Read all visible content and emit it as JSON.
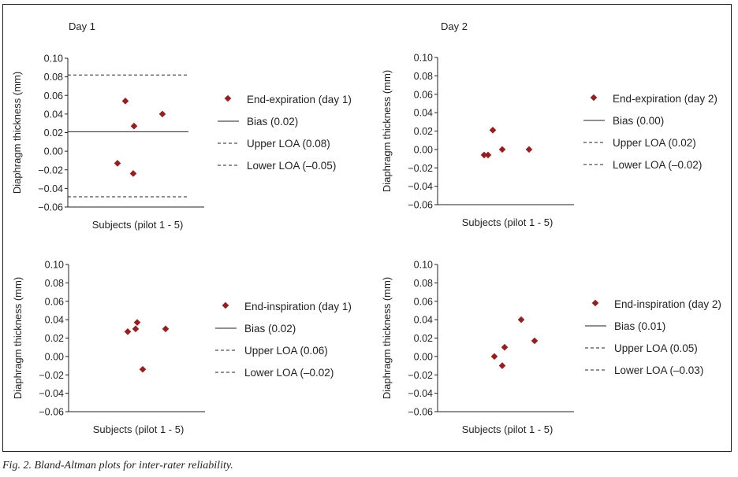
{
  "caption": "Fig. 2. Bland-Altman plots for inter-rater reliability.",
  "colors": {
    "marker": "#9b1c1c",
    "line": "#231f20"
  },
  "chart_data": [
    {
      "type": "scatter",
      "panel": "top-left",
      "title": "Day 1",
      "xlabel": "Subjects (pilot 1 - 5)",
      "ylabel": "Diaphragm thickness (mm)",
      "ylim": [
        -0.06,
        0.1
      ],
      "yticks": [
        "0.10",
        "0.08",
        "0.06",
        "0.04",
        "0.02",
        "0.00",
        "−0.02",
        "−0.04",
        "−0.06"
      ],
      "grid": false,
      "legend_position": "right",
      "points": [
        {
          "x": 1,
          "y": -0.013
        },
        {
          "x": 2,
          "y": 0.054
        },
        {
          "x": 3,
          "y": -0.024
        },
        {
          "x": 4,
          "y": 0.027
        },
        {
          "x": 5,
          "y": 0.04
        }
      ],
      "lines_drawn": true,
      "bias": 0.021,
      "upper_loa": 0.082,
      "lower_loa": -0.049,
      "legend": [
        {
          "kind": "marker",
          "label": "End-expiration (day 1)"
        },
        {
          "kind": "solid",
          "label": "Bias (0.02)"
        },
        {
          "kind": "dashed",
          "label": "Upper LOA (0.08)"
        },
        {
          "kind": "dashed",
          "label": "Lower LOA (–0.05)"
        }
      ]
    },
    {
      "type": "scatter",
      "panel": "top-right",
      "title": "Day 2",
      "xlabel": "Subjects (pilot 1 - 5)",
      "ylabel": "Diaphragm thickness (mm)",
      "ylim": [
        -0.06,
        0.1
      ],
      "yticks": [
        "0.10",
        "0.08",
        "0.06",
        "0.04",
        "0.02",
        "0.00",
        "−0.02",
        "−0.04",
        "−0.06"
      ],
      "grid": false,
      "legend_position": "right",
      "points": [
        {
          "x": 1,
          "y": -0.006
        },
        {
          "x": 2,
          "y": -0.006
        },
        {
          "x": 3,
          "y": 0.0
        },
        {
          "x": 4,
          "y": 0.021
        },
        {
          "x": 5,
          "y": 0.0
        }
      ],
      "lines_drawn": false,
      "bias": 0.0,
      "upper_loa": 0.02,
      "lower_loa": -0.02,
      "legend": [
        {
          "kind": "marker",
          "label": "End-expiration (day 2)"
        },
        {
          "kind": "solid",
          "label": "Bias (0.00)"
        },
        {
          "kind": "dashed",
          "label": "Upper LOA (0.02)"
        },
        {
          "kind": "dashed",
          "label": "Lower LOA (–0.02)"
        }
      ]
    },
    {
      "type": "scatter",
      "panel": "bottom-left",
      "title": "",
      "xlabel": "Subjects (pilot 1 - 5)",
      "ylabel": "Diaphragm thickness (mm)",
      "ylim": [
        -0.06,
        0.1
      ],
      "yticks": [
        "0.10",
        "0.08",
        "0.06",
        "0.04",
        "0.02",
        "0.00",
        "−0.02",
        "−0.04",
        "−0.06"
      ],
      "grid": false,
      "legend_position": "right",
      "points": [
        {
          "x": 1,
          "y": 0.027
        },
        {
          "x": 2,
          "y": 0.03
        },
        {
          "x": 3,
          "y": 0.037
        },
        {
          "x": 4,
          "y": -0.014
        },
        {
          "x": 5,
          "y": 0.03
        }
      ],
      "lines_drawn": false,
      "bias": 0.02,
      "upper_loa": 0.06,
      "lower_loa": -0.02,
      "legend": [
        {
          "kind": "marker",
          "label": "End-inspiration (day 1)"
        },
        {
          "kind": "solid",
          "label": "Bias (0.02)"
        },
        {
          "kind": "dashed",
          "label": "Upper LOA (0.06)"
        },
        {
          "kind": "dashed",
          "label": "Lower LOA (–0.02)"
        }
      ]
    },
    {
      "type": "scatter",
      "panel": "bottom-right",
      "title": "",
      "xlabel": "Subjects (pilot 1 - 5)",
      "ylabel": "Diaphragm thickness (mm)",
      "ylim": [
        -0.06,
        0.1
      ],
      "yticks": [
        "0.10",
        "0.08",
        "0.06",
        "0.04",
        "0.02",
        "0.00",
        "−0.02",
        "−0.04",
        "−0.06"
      ],
      "grid": false,
      "legend_position": "right",
      "points": [
        {
          "x": 1,
          "y": 0.0
        },
        {
          "x": 2,
          "y": -0.01
        },
        {
          "x": 3,
          "y": 0.01
        },
        {
          "x": 4,
          "y": 0.04
        },
        {
          "x": 5,
          "y": 0.017
        }
      ],
      "lines_drawn": false,
      "bias": 0.01,
      "upper_loa": 0.05,
      "lower_loa": -0.03,
      "legend": [
        {
          "kind": "marker",
          "label": "End-inspiration (day 2)"
        },
        {
          "kind": "solid",
          "label": "Bias (0.01)"
        },
        {
          "kind": "dashed",
          "label": "Upper LOA (0.05)"
        },
        {
          "kind": "dashed",
          "label": "Lower LOA (–0.03)"
        }
      ]
    }
  ]
}
